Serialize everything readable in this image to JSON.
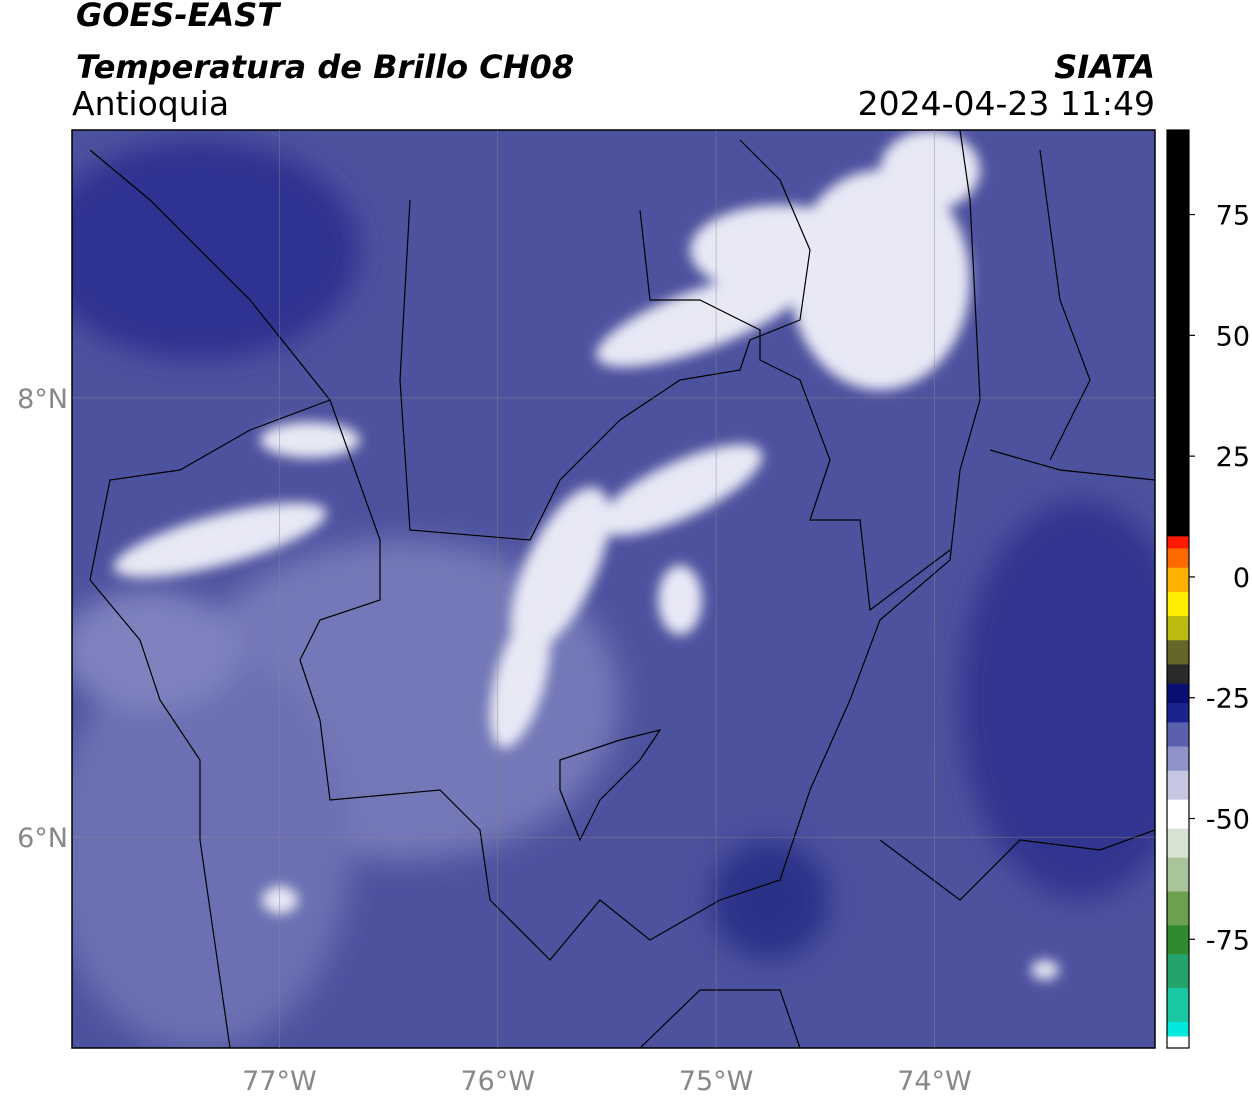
{
  "header": {
    "line1": "GOES-EAST",
    "line2": "Temperatura de Brillo CH08",
    "region": "Antioquia",
    "source": "SIATA",
    "datetime": "2024-04-23 11:49"
  },
  "map": {
    "xlim": [
      -77.95,
      -72.99
    ],
    "ylim": [
      5.04,
      9.22
    ],
    "xticks": [
      {
        "value": -77,
        "label": "77°W"
      },
      {
        "value": -76,
        "label": "76°W"
      },
      {
        "value": -75,
        "label": "75°W"
      },
      {
        "value": -74,
        "label": "74°W"
      }
    ],
    "yticks": [
      {
        "value": 8,
        "label": "8°N"
      },
      {
        "value": 6,
        "label": "6°N"
      }
    ],
    "grid": true
  },
  "colorbar": {
    "range": [
      -97.5,
      92.5
    ],
    "ticks": [
      75,
      50,
      25,
      0,
      -25,
      -50,
      -75
    ],
    "stops": [
      {
        "value": -97.5,
        "color": "#ffffff"
      },
      {
        "value": -95,
        "color": "#00e8dc"
      },
      {
        "value": -92,
        "color": "#1bc8a4"
      },
      {
        "value": -85,
        "color": "#23a46a"
      },
      {
        "value": -78,
        "color": "#2f8a30"
      },
      {
        "value": -72,
        "color": "#6aa050"
      },
      {
        "value": -65,
        "color": "#a9c49a"
      },
      {
        "value": -58,
        "color": "#d8e2d2"
      },
      {
        "value": -52,
        "color": "#ffffff"
      },
      {
        "value": -46,
        "color": "#c4c6e2"
      },
      {
        "value": -40,
        "color": "#8e92c8"
      },
      {
        "value": -35,
        "color": "#5a5fae"
      },
      {
        "value": -30,
        "color": "#1c2290"
      },
      {
        "value": -26,
        "color": "#0a0e70"
      },
      {
        "value": -22,
        "color": "#2a2a2a"
      },
      {
        "value": -18,
        "color": "#66662a"
      },
      {
        "value": -13,
        "color": "#bcbc10"
      },
      {
        "value": -8,
        "color": "#ffee00"
      },
      {
        "value": -3,
        "color": "#ffb000"
      },
      {
        "value": 2,
        "color": "#ff6a00"
      },
      {
        "value": 6,
        "color": "#ff1a00"
      },
      {
        "value": 8.5,
        "color": "#000000"
      },
      {
        "value": 92.5,
        "color": "#000000"
      }
    ]
  }
}
